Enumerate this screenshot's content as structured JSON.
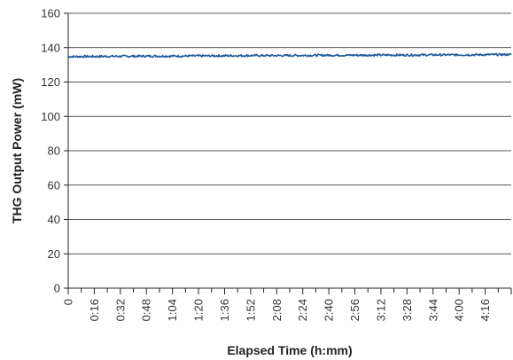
{
  "chart_data": {
    "type": "line",
    "title": "",
    "xlabel": "Elapsed Time (h:mm)",
    "ylabel": "THG Output Power (mW)",
    "ylim": [
      0,
      160
    ],
    "yticks": [
      0,
      20,
      40,
      60,
      80,
      100,
      120,
      140,
      160
    ],
    "xlim_minutes": [
      0,
      272
    ],
    "xticks": [
      "0",
      "0:16",
      "0:32",
      "0:48",
      "1:04",
      "1:20",
      "1:36",
      "1:52",
      "2:08",
      "2:24",
      "2:40",
      "2:56",
      "3:12",
      "3:28",
      "3:44",
      "4:00",
      "4:16"
    ],
    "grid": "horizontal",
    "legend": "none",
    "series": [
      {
        "color": "#1f5a9c",
        "x_minutes": [
          0,
          16,
          32,
          48,
          64,
          80,
          96,
          112,
          128,
          144,
          160,
          176,
          192,
          208,
          224,
          240,
          256,
          272
        ],
        "values": [
          134.8,
          134.9,
          135.0,
          135.1,
          135.1,
          135.2,
          135.3,
          135.4,
          135.4,
          135.5,
          135.6,
          135.6,
          135.7,
          135.7,
          135.8,
          135.8,
          135.9,
          136.0
        ]
      }
    ]
  }
}
